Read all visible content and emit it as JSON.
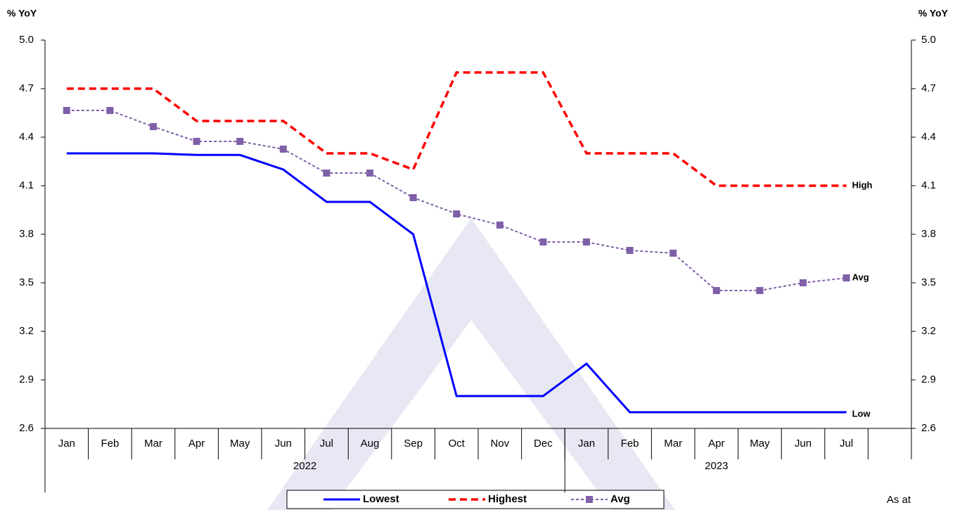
{
  "chart_data": {
    "type": "line",
    "y_axis_label": "% YoY",
    "y2_axis_label": "% YoY",
    "categories": [
      "Jan",
      "Feb",
      "Mar",
      "Apr",
      "May",
      "Jun",
      "Jul",
      "Aug",
      "Sep",
      "Oct",
      "Nov",
      "Dec",
      "Jan",
      "Feb",
      "Mar",
      "Apr",
      "May",
      "Jun",
      "Jul",
      null
    ],
    "groups": [
      {
        "label": "2022",
        "start": 0,
        "end": 11
      },
      {
        "label": "2023",
        "start": 12,
        "end": 18
      }
    ],
    "series": [
      {
        "name": "Lowest",
        "color": "#0000ff",
        "dash": "solid",
        "marker": false,
        "end_label": "Low",
        "values": [
          4.3,
          4.3,
          4.3,
          4.29,
          4.29,
          4.2,
          4.0,
          4.0,
          3.8,
          2.8,
          2.8,
          2.8,
          3.0,
          2.7,
          2.7,
          2.7,
          2.7,
          2.7,
          2.7,
          null
        ]
      },
      {
        "name": "Highest",
        "color": "#ff0000",
        "dash": "dashed",
        "marker": false,
        "end_label": "High",
        "values": [
          4.7,
          4.7,
          4.7,
          4.5,
          4.5,
          4.5,
          4.3,
          4.3,
          4.2,
          4.8,
          4.8,
          4.8,
          4.3,
          4.3,
          4.3,
          4.1,
          4.1,
          4.1,
          4.1,
          null
        ]
      },
      {
        "name": "Avg",
        "color": "#7f5fa8",
        "dash": "dotted",
        "marker": true,
        "end_label": "Avg",
        "values": [
          4.565,
          4.565,
          4.465,
          4.374,
          4.374,
          4.326,
          4.178,
          4.178,
          4.026,
          3.926,
          3.857,
          3.752,
          3.752,
          3.7,
          3.683,
          3.452,
          3.452,
          3.5,
          3.53,
          null
        ]
      }
    ],
    "ylim": [
      2.6,
      5.0
    ],
    "yticks": [
      2.6,
      2.9,
      3.2,
      3.5,
      3.8,
      4.1,
      4.4,
      4.7,
      {
        "value": 5.0,
        "label": "5.0"
      }
    ],
    "y2lim": [
      2.6,
      5.0
    ],
    "y2ticks": [
      2.6,
      2.9,
      3.2,
      3.5,
      3.8,
      4.1,
      4.4,
      4.7,
      {
        "value": 5.0,
        "label": "5.0"
      }
    ],
    "legend": "bottom",
    "footnote": "As at"
  }
}
